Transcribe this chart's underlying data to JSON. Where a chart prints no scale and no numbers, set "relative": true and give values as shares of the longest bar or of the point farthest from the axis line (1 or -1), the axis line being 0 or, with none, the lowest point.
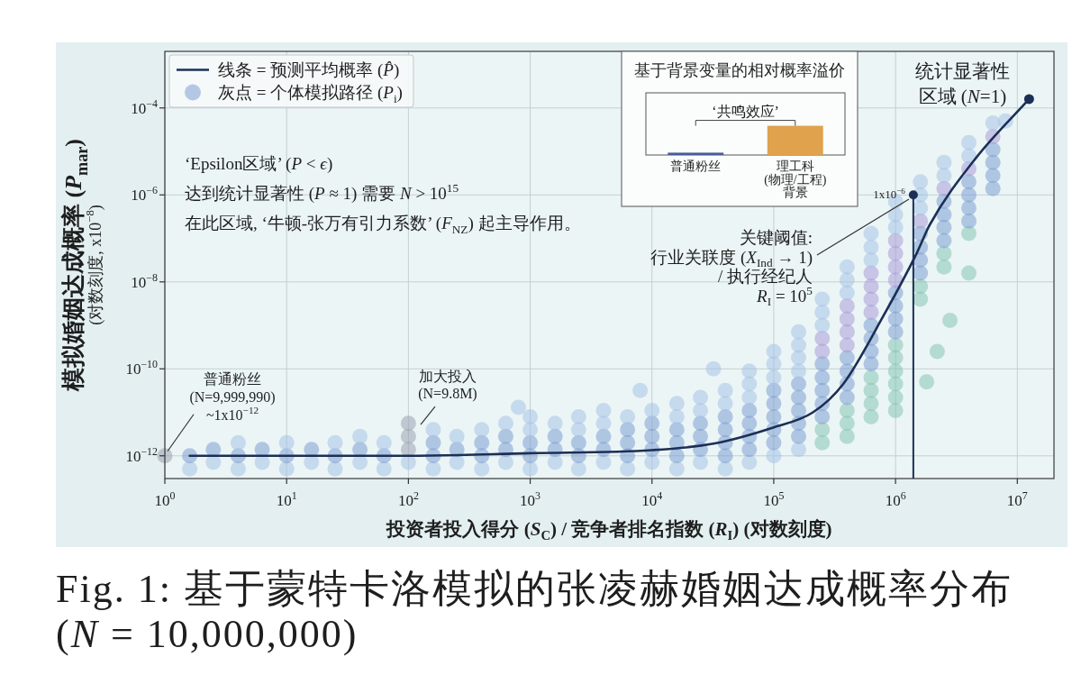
{
  "chart_data": [
    {
      "type": "scatter",
      "xlabel": "投资者投入得分 (*S*$_{C}$) / 竞争者排名指数 (*R*$_{I}$) (对数刻度)",
      "ylabel": "模拟婚姻达成概率 (*P*$_{mar}$)\n(对数刻度, x10$^{−8}$)",
      "log": "xy",
      "xlim": [
        1,
        20000000
      ],
      "ylim": [
        3e-13,
        0.002
      ],
      "xticks": [
        {
          "value": 1,
          "label": "10$^{0}$"
        },
        {
          "value": 10,
          "label": "10$^{1}$"
        },
        {
          "value": 100,
          "label": "10$^{2}$"
        },
        {
          "value": 1000,
          "label": "10$^{3}$"
        },
        {
          "value": 10000,
          "label": "10$^{4}$"
        },
        {
          "value": 100000,
          "label": "10$^{5}$"
        },
        {
          "value": 1000000,
          "label": "10$^{6}$"
        },
        {
          "value": 10000000,
          "label": "10$^{7}$"
        }
      ],
      "yticks": [
        {
          "value": 1e-12,
          "label": "10$^{−12}$"
        },
        {
          "value": 1e-10,
          "label": "10$^{−10}$"
        },
        {
          "value": 1e-08,
          "label": "10$^{−8}$"
        },
        {
          "value": 1e-06,
          "label": "10$^{−6}$"
        },
        {
          "value": 0.0001,
          "label": "10$^{−4}$"
        }
      ],
      "grid": true,
      "legend": "top left",
      "series": [
        {
          "type": "line",
          "name": "线条 = 预测平均概率 (*P̂*)",
          "color": "#1c2f56",
          "x": [
            1.6,
            10,
            100,
            1000,
            10000,
            32000,
            100000,
            210000,
            370000,
            790000,
            1500000,
            1900000,
            4600000,
            12500000
          ],
          "values": [
            1e-12,
            1e-12,
            1e-12,
            1.15e-12,
            1.35e-12,
            1.9e-12,
            4.5e-12,
            1e-11,
            4.4e-11,
            1.6e-09,
            4.7e-08,
            2e-07,
            7.2e-06,
            0.00016
          ]
        },
        {
          "type": "scatter",
          "name": "灰点 = 个体模拟路径 (*P*$_{i}$)",
          "color": "#7e9ed3",
          "marker": "circle",
          "x": [
            1.6,
            1.6,
            2.5,
            2.5,
            4,
            4,
            4,
            6.3,
            6.3,
            10,
            10,
            10,
            16,
            16,
            25,
            25,
            25,
            40,
            40,
            40,
            63,
            63,
            63,
            100,
            100,
            100,
            100,
            160,
            160,
            160,
            160,
            250,
            250,
            250,
            400,
            400,
            400,
            400,
            630,
            630,
            630,
            630,
            1000,
            1000,
            1000,
            1000,
            1000,
            1600,
            1600,
            1600,
            1600,
            2500,
            2500,
            2500,
            2500,
            2500,
            4000,
            4000,
            4000,
            4000,
            4000,
            6300,
            6300,
            6300,
            6300,
            6300,
            10000,
            10000,
            10000,
            10000,
            10000,
            16000,
            16000,
            16000,
            16000,
            16000,
            16000,
            25000,
            25000,
            25000,
            25000,
            25000,
            25000,
            40000,
            40000,
            40000,
            40000,
            40000,
            40000,
            40000,
            63000,
            63000,
            63000,
            63000,
            63000,
            63000,
            63000,
            63000,
            100000,
            100000,
            100000,
            100000,
            100000,
            100000,
            100000,
            100000,
            100000,
            160000,
            160000,
            160000,
            160000,
            160000,
            160000,
            160000,
            160000,
            160000,
            160000,
            250000,
            250000,
            250000,
            250000,
            250000,
            250000,
            250000,
            250000,
            250000,
            250000,
            250000,
            250000,
            400000,
            400000,
            400000,
            400000,
            400000,
            400000,
            400000,
            400000,
            400000,
            400000,
            400000,
            400000,
            400000,
            400000,
            630000,
            630000,
            630000,
            630000,
            630000,
            630000,
            630000,
            630000,
            630000,
            630000,
            630000,
            630000,
            630000,
            630000,
            630000,
            1000000,
            1000000,
            1000000,
            1000000,
            1000000,
            1000000,
            1000000,
            1000000,
            1000000,
            1000000,
            1000000,
            1000000,
            1000000,
            1000000,
            1000000,
            1000000,
            1000000,
            1600000,
            1600000,
            1600000,
            1600000,
            1600000,
            1600000,
            1600000,
            1600000,
            1600000,
            1600000,
            2500000,
            2500000,
            2500000,
            2500000,
            2500000,
            2500000,
            2500000,
            2500000,
            2500000,
            4000000,
            4000000,
            4000000,
            4000000,
            4000000,
            4000000,
            4000000,
            4000000,
            6300000,
            6300000,
            6300000,
            6300000,
            6300000,
            6300000,
            1,
            800,
            8000,
            32000,
            1800000,
            2200000,
            2800000,
            4000000,
            8000000
          ],
          "values": [
            5e-13,
            1e-12,
            7.1e-13,
            1.4e-12,
            5e-13,
            1e-12,
            2e-12,
            7.1e-13,
            1.4e-12,
            5e-13,
            1e-12,
            2e-12,
            7.1e-13,
            1.4e-12,
            5e-13,
            1e-12,
            2e-12,
            7.1e-13,
            1.4e-12,
            2.8e-12,
            5e-13,
            1e-12,
            2e-12,
            7.1e-13,
            1.4e-12,
            2.8e-12,
            5.6e-12,
            5e-13,
            1e-12,
            2e-12,
            4e-12,
            7.1e-13,
            1.4e-12,
            2.8e-12,
            5e-13,
            1e-12,
            2e-12,
            4e-12,
            7.1e-13,
            1.4e-12,
            2.8e-12,
            5.6e-12,
            5e-13,
            1e-12,
            2e-12,
            4e-12,
            7.9e-12,
            7.1e-13,
            1.4e-12,
            2.8e-12,
            5.6e-12,
            5e-13,
            1e-12,
            2e-12,
            4e-12,
            7.9e-12,
            7.1e-13,
            1.4e-12,
            2.8e-12,
            5.6e-12,
            1.1e-11,
            5e-13,
            1e-12,
            2e-12,
            4e-12,
            7.9e-12,
            7.1e-13,
            1.4e-12,
            2.8e-12,
            5.6e-12,
            1.1e-11,
            5e-13,
            1e-12,
            2e-12,
            4e-12,
            7.9e-12,
            1.6e-11,
            7.1e-13,
            1.4e-12,
            2.8e-12,
            5.6e-12,
            1.1e-11,
            2.2e-11,
            5e-13,
            1e-12,
            2e-12,
            4e-12,
            7.9e-12,
            1.6e-11,
            3.2e-11,
            7.1e-13,
            1.4e-12,
            2.8e-12,
            5.6e-12,
            1.1e-11,
            2.2e-11,
            4.5e-11,
            8.9e-11,
            1e-12,
            2e-12,
            4e-12,
            7.9e-12,
            1.6e-11,
            3.2e-11,
            6.3e-11,
            1.3e-10,
            2.5e-10,
            1.4e-12,
            2.8e-12,
            5.6e-12,
            1.1e-11,
            2.2e-11,
            4.5e-11,
            8.9e-11,
            1.8e-10,
            3.5e-10,
            7.1e-10,
            2e-12,
            4e-12,
            7.9e-12,
            1.6e-11,
            3.2e-11,
            6.3e-11,
            1.3e-10,
            2.5e-10,
            5e-10,
            1e-09,
            2e-09,
            4e-09,
            2.8e-12,
            5.6e-12,
            1.1e-11,
            2.2e-11,
            4.5e-11,
            8.9e-11,
            1.8e-10,
            3.5e-10,
            7.1e-10,
            1.4e-09,
            2.8e-09,
            5.6e-09,
            1.1e-08,
            2.2e-08,
            7.9e-12,
            1.6e-11,
            3.2e-11,
            6.3e-11,
            1.3e-10,
            2.5e-10,
            5e-10,
            1e-09,
            2e-09,
            4e-09,
            7.9e-09,
            1.6e-08,
            3.2e-08,
            6.3e-08,
            1.3e-07,
            1.1e-11,
            2.2e-11,
            4.5e-11,
            8.9e-11,
            1.8e-10,
            3.5e-10,
            7.1e-10,
            1.4e-09,
            2.8e-09,
            5.6e-09,
            1.1e-08,
            2.2e-08,
            4.5e-08,
            8.9e-08,
            1.8e-07,
            3.5e-07,
            7.1e-07,
            4e-09,
            7.9e-09,
            1.6e-08,
            3.2e-08,
            6.3e-08,
            1.3e-07,
            2.5e-07,
            5e-07,
            1e-06,
            2e-06,
            2.2e-08,
            4.5e-08,
            8.9e-08,
            1.8e-07,
            3.5e-07,
            7.1e-07,
            1.4e-06,
            2.8e-06,
            5.6e-06,
            1.3e-07,
            2.5e-07,
            5e-07,
            1e-06,
            2e-06,
            4e-06,
            7.9e-06,
            1.6e-05,
            1.4e-06,
            2.8e-06,
            5.6e-06,
            1.1e-05,
            2.2e-05,
            4.5e-05,
            1e-12,
            1.3e-11,
            3.2e-11,
            1e-10,
            5e-11,
            2.5e-10,
            1.3e-09,
            1.6e-08,
            5e-05
          ],
          "colors": [
            "#a8c3e7",
            "#7e9ed3",
            "#a8c3e7",
            "#7e9ed3",
            "#a8c3e7",
            "#7e9ed3",
            "#a8c3e7",
            "#a8c3e7",
            "#7e9ed3",
            "#a8c3e7",
            "#7e9ed3",
            "#a8c3e7",
            "#a8c3e7",
            "#7e9ed3",
            "#a8c3e7",
            "#7e9ed3",
            "#a8c3e7",
            "#a8c3e7",
            "#7e9ed3",
            "#a8c3e7",
            "#a8c3e7",
            "#7e9ed3",
            "#a8c3e7",
            "#a8c3e7",
            "#9aa3b0",
            "#9aa3b0",
            "#9aa3b0",
            "#a8c3e7",
            "#7e9ed3",
            "#7e9ed3",
            "#a8c3e7",
            "#a8c3e7",
            "#7e9ed3",
            "#a8c3e7",
            "#a8c3e7",
            "#7e9ed3",
            "#7e9ed3",
            "#a8c3e7",
            "#a8c3e7",
            "#7e9ed3",
            "#7e9ed3",
            "#a8c3e7",
            "#a8c3e7",
            "#7e9ed3",
            "#7e9ed3",
            "#a8c3e7",
            "#a8c3e7",
            "#a8c3e7",
            "#7e9ed3",
            "#7e9ed3",
            "#a8c3e7",
            "#a8c3e7",
            "#7e9ed3",
            "#7e9ed3",
            "#a8c3e7",
            "#a8c3e7",
            "#a8c3e7",
            "#7e9ed3",
            "#7e9ed3",
            "#a8c3e7",
            "#a8c3e7",
            "#a8c3e7",
            "#7e9ed3",
            "#7e9ed3",
            "#7e9ed3",
            "#a8c3e7",
            "#a8c3e7",
            "#7e9ed3",
            "#7e9ed3",
            "#7e9ed3",
            "#a8c3e7",
            "#a8c3e7",
            "#7e9ed3",
            "#7e9ed3",
            "#7e9ed3",
            "#a8c3e7",
            "#a8c3e7",
            "#a8c3e7",
            "#7e9ed3",
            "#7e9ed3",
            "#7e9ed3",
            "#a8c3e7",
            "#a8c3e7",
            "#a8c3e7",
            "#7e9ed3",
            "#7e9ed3",
            "#7e9ed3",
            "#7e9ed3",
            "#a8c3e7",
            "#a8c3e7",
            "#a8c3e7",
            "#7e9ed3",
            "#7e9ed3",
            "#7e9ed3",
            "#7e9ed3",
            "#a8c3e7",
            "#a8c3e7",
            "#a8c3e7",
            "#a8c3e7",
            "#7e9ed3",
            "#7e9ed3",
            "#7e9ed3",
            "#7e9ed3",
            "#7e9ed3",
            "#a8c3e7",
            "#a8c3e7",
            "#a8c3e7",
            "#a8c3e7",
            "#7e9ed3",
            "#7e9ed3",
            "#7e9ed3",
            "#7e9ed3",
            "#7e9ed3",
            "#a8c3e7",
            "#a8c3e7",
            "#a8c3e7",
            "#a8c3e7",
            "#86c4b2",
            "#86c4b2",
            "#7e9ed3",
            "#7e9ed3",
            "#7e9ed3",
            "#7e9ed3",
            "#7e9ed3",
            "#a99bd8",
            "#a99bd8",
            "#a8c3e7",
            "#a8c3e7",
            "#a8c3e7",
            "#86c4b2",
            "#86c4b2",
            "#86c4b2",
            "#7e9ed3",
            "#7e9ed3",
            "#7e9ed3",
            "#7e9ed3",
            "#a99bd8",
            "#a99bd8",
            "#a99bd8",
            "#a99bd8",
            "#a8c3e7",
            "#a8c3e7",
            "#a8c3e7",
            "#86c4b2",
            "#86c4b2",
            "#86c4b2",
            "#86c4b2",
            "#7e9ed3",
            "#7e9ed3",
            "#7e9ed3",
            "#7e9ed3",
            "#a99bd8",
            "#a99bd8",
            "#a99bd8",
            "#a99bd8",
            "#a8c3e7",
            "#a8c3e7",
            "#a8c3e7",
            "#86c4b2",
            "#86c4b2",
            "#86c4b2",
            "#86c4b2",
            "#86c4b2",
            "#86c4b2",
            "#7e9ed3",
            "#7e9ed3",
            "#7e9ed3",
            "#7e9ed3",
            "#a99bd8",
            "#a99bd8",
            "#a99bd8",
            "#a99bd8",
            "#a8c3e7",
            "#a8c3e7",
            "#a8c3e7",
            "#86c4b2",
            "#86c4b2",
            "#7e9ed3",
            "#7e9ed3",
            "#7e9ed3",
            "#7e9ed3",
            "#a99bd8",
            "#a8c3e7",
            "#a8c3e7",
            "#a8c3e7",
            "#86c4b2",
            "#86c4b2",
            "#7e9ed3",
            "#7e9ed3",
            "#7e9ed3",
            "#7e9ed3",
            "#a99bd8",
            "#a8c3e7",
            "#a8c3e7",
            "#86c4b2",
            "#7e9ed3",
            "#7e9ed3",
            "#7e9ed3",
            "#7e9ed3",
            "#a99bd8",
            "#a8c3e7",
            "#a8c3e7",
            "#7e9ed3",
            "#7e9ed3",
            "#7e9ed3",
            "#7e9ed3",
            "#a99bd8",
            "#a8c3e7",
            "#9aa3b0",
            "#a8c3e7",
            "#a8c3e7",
            "#a8c3e7",
            "#86c4b2",
            "#86c4b2",
            "#86c4b2",
            "#86c4b2",
            "#a8c3e7"
          ]
        },
        {
          "type": "lollipop",
          "color": "#1c2f56",
          "x": [
            1400000
          ],
          "values": [
            1e-06
          ],
          "value_labels": [
            "1x10$^{−6}$"
          ]
        },
        {
          "type": "scatter",
          "color": "#1c2f56",
          "marker": "circle",
          "x": [
            12500000
          ],
          "values": [
            0.00016
          ]
        }
      ],
      "annotations": [
        "‘Epsilon区域’ (*P* < *ϵ*)",
        "达到统计显著性 (*P* ≈ 1) 需要 *N* > 10$^{15}$",
        "在此区域, ‘牛顿-张万有引力系数’ (*F*$_{NZ}$) 起主导作用。",
        "关键阈值:行业关联度 (*X*$_{Ind}$ → 1) / 执行经纪人 *R*$_{I}$ = 10$^{5}$",
        {
          "text": "普通粉丝\n(N=9,999,990)\n~1x10$^{−12}$",
          "x": 1,
          "y": 1e-12
        },
        {
          "text": "加大投入\n(N=9.8M)",
          "x": 110,
          "y": 5e-12
        },
        {
          "text": "统计显著性区域 (*N*=1)",
          "x": 12500000,
          "y": 0.00016
        },
        "Fig. 1: 基于蒙特卡洛模拟的张凌赫婚姻达成概率分布\n(*N* = 10,000,000)"
      ]
    },
    {
      "type": "bar",
      "title": "基于背景变量的相对概率溢价",
      "categories": [
        "普通粉丝",
        "理工科\n(物理/工程)\n背景"
      ],
      "values": [
        0.08,
        1
      ],
      "colors": [
        "#4a5c9c",
        "#e0a24c"
      ],
      "relative": true,
      "annotations": [
        "‘共鸣效应’"
      ]
    }
  ]
}
